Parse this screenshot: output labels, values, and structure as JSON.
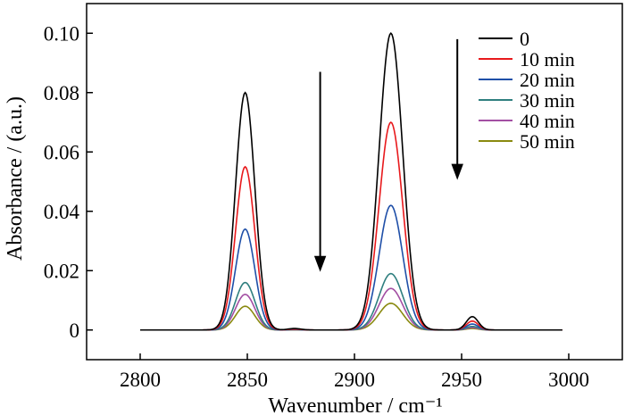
{
  "chart_data": {
    "type": "line",
    "xlabel": "Wavenumber / cm⁻¹",
    "ylabel": "Absorbance / (a.u.)",
    "xlim": [
      2775,
      3025
    ],
    "ylim": [
      -0.01,
      0.11
    ],
    "xticks": [
      2800,
      2850,
      2900,
      2950,
      3000
    ],
    "yticks": [
      0,
      0.02,
      0.04,
      0.06,
      0.08,
      0.1
    ],
    "ytick_labels": [
      "0",
      "0.02",
      "0.04",
      "0.06",
      "0.08",
      "0.10"
    ],
    "x_range": [
      2800,
      2997
    ],
    "grid": false,
    "legend_position": "top-right",
    "peaks": [
      {
        "center": 2849,
        "width": 4.5
      },
      {
        "center": 2872,
        "width": 3.0
      },
      {
        "center": 2917,
        "width": 5.5
      },
      {
        "center": 2955,
        "width": 2.8
      }
    ],
    "series": [
      {
        "name": "0",
        "color": "#000000",
        "peak_heights": [
          0.08,
          0.0005,
          0.1,
          0.0045
        ]
      },
      {
        "name": "10 min",
        "color": "#e8191c",
        "peak_heights": [
          0.055,
          0.0003,
          0.07,
          0.003
        ]
      },
      {
        "name": "20 min",
        "color": "#1f4fa8",
        "peak_heights": [
          0.034,
          0.0002,
          0.042,
          0.002
        ]
      },
      {
        "name": "30 min",
        "color": "#2f7f7f",
        "peak_heights": [
          0.016,
          0.0001,
          0.019,
          0.0012
        ]
      },
      {
        "name": "40 min",
        "color": "#a34fa3",
        "peak_heights": [
          0.012,
          0.0001,
          0.014,
          0.0008
        ]
      },
      {
        "name": "50 min",
        "color": "#8a8a10",
        "peak_heights": [
          0.008,
          0.0,
          0.009,
          0.0005
        ]
      }
    ],
    "arrows": [
      {
        "x": 2884,
        "y_start": 0.087,
        "y_end": 0.02
      },
      {
        "x": 2948,
        "y_start": 0.098,
        "y_end": 0.051
      }
    ]
  }
}
